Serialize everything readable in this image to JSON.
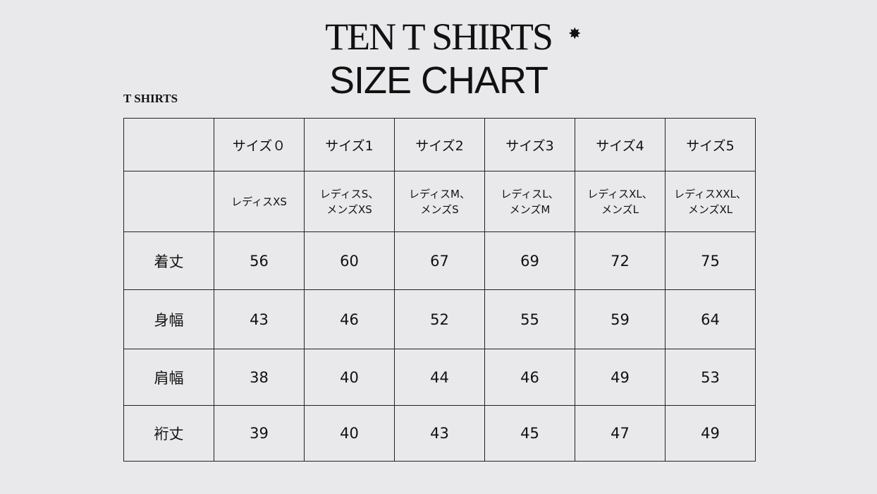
{
  "header": {
    "brand": "TEN T SHIRTS",
    "star_icon": "eight-point-star",
    "title": "SIZE CHART",
    "subtitle": "T SHIRTS"
  },
  "table": {
    "sizes": [
      "サイズ０",
      "サイズ1",
      "サイズ2",
      "サイズ3",
      "サイズ4",
      "サイズ5"
    ],
    "equivalents": [
      [
        "レディスXS",
        ""
      ],
      [
        "レディスS、",
        "メンズXS"
      ],
      [
        "レディスM、",
        "メンズS"
      ],
      [
        "レディスL、",
        "メンズM"
      ],
      [
        "レディスXL、",
        "メンズL"
      ],
      [
        "レディスXXL、",
        "メンズXL"
      ]
    ],
    "rows": [
      {
        "label": "着丈",
        "values": [
          "56",
          "60",
          "67",
          "69",
          "72",
          "75"
        ]
      },
      {
        "label": "身幅",
        "values": [
          "43",
          "46",
          "52",
          "55",
          "59",
          "64"
        ]
      },
      {
        "label": "肩幅",
        "values": [
          "38",
          "40",
          "44",
          "46",
          "49",
          "53"
        ]
      },
      {
        "label": "裄丈",
        "values": [
          "39",
          "40",
          "43",
          "45",
          "47",
          "49"
        ]
      }
    ]
  }
}
